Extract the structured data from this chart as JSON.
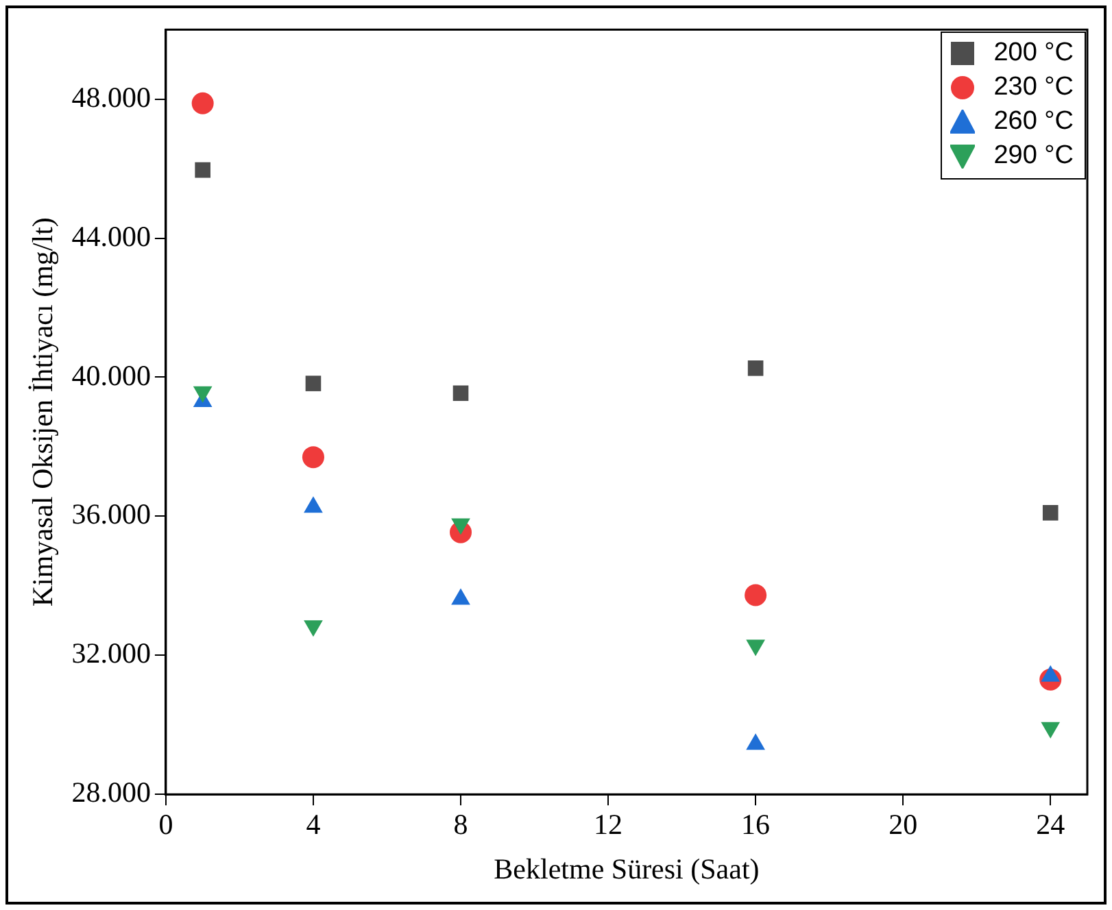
{
  "chart_data": {
    "type": "scatter",
    "xlabel": "Bekletme Süresi (Saat)",
    "ylabel": "Kimyasal Oksijen İhtiyacı (mg/lt)",
    "x": [
      1,
      4,
      8,
      16,
      24
    ],
    "xlim": [
      0,
      25
    ],
    "xticks": [
      0,
      4,
      8,
      12,
      16,
      20,
      24
    ],
    "ylim": [
      28000,
      50000
    ],
    "yticks": [
      {
        "value": 28000,
        "label": "28.000"
      },
      {
        "value": 32000,
        "label": "32.000"
      },
      {
        "value": 36000,
        "label": "36.000"
      },
      {
        "value": 40000,
        "label": "40.000"
      },
      {
        "value": 44000,
        "label": "44.000"
      },
      {
        "value": 48000,
        "label": "48.000"
      }
    ],
    "grid": false,
    "legend": "top right",
    "series": [
      {
        "name": "200 °C",
        "color": "#4d4d4d",
        "marker": "square",
        "values": [
          45960,
          39820,
          39540,
          40260,
          36100
        ]
      },
      {
        "name": "230 °C",
        "color": "#ef3b3b",
        "marker": "circle",
        "values": [
          47880,
          37700,
          35540,
          33730,
          31300
        ]
      },
      {
        "name": "260 °C",
        "color": "#1f6fd6",
        "marker": "triangle",
        "values": [
          39300,
          36260,
          33610,
          29440,
          31400
        ]
      },
      {
        "name": "290 °C",
        "color": "#2ca05a",
        "marker": "triangle-down",
        "values": [
          39580,
          32850,
          35780,
          32290,
          29920
        ]
      }
    ]
  }
}
